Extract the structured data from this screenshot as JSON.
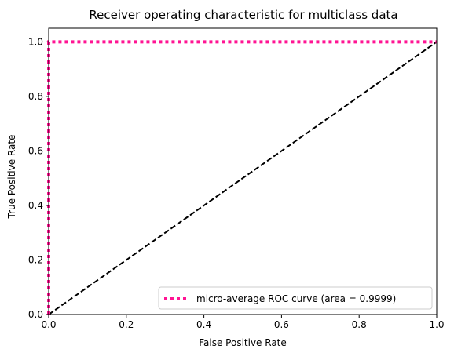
{
  "chart_data": {
    "type": "line",
    "title": "Receiver operating characteristic for multiclass data",
    "xlabel": "False Positive Rate",
    "ylabel": "True Positive Rate",
    "xlim": [
      0.0,
      1.0
    ],
    "ylim": [
      0.0,
      1.05
    ],
    "xticks": [
      0.0,
      0.2,
      0.4,
      0.6,
      0.8,
      1.0
    ],
    "yticks": [
      0.0,
      0.2,
      0.4,
      0.6,
      0.8,
      1.0
    ],
    "xtick_labels": [
      "0.0",
      "0.2",
      "0.4",
      "0.6",
      "0.8",
      "1.0"
    ],
    "ytick_labels": [
      "0.0",
      "0.2",
      "0.4",
      "0.6",
      "0.8",
      "1.0"
    ],
    "grid": false,
    "legend_position": "lower right",
    "series": [
      {
        "name": "micro-average ROC curve (area = 0.9999)",
        "color": "#ff1493",
        "line_style": "dotted",
        "x": [
          0.0,
          0.0,
          0.0001,
          1.0
        ],
        "y": [
          0.0,
          0.99,
          1.0,
          1.0
        ]
      },
      {
        "color": "#000000",
        "line_style": "dashed",
        "x": [
          0.0,
          1.0
        ],
        "y": [
          0.0,
          1.0
        ]
      }
    ]
  }
}
